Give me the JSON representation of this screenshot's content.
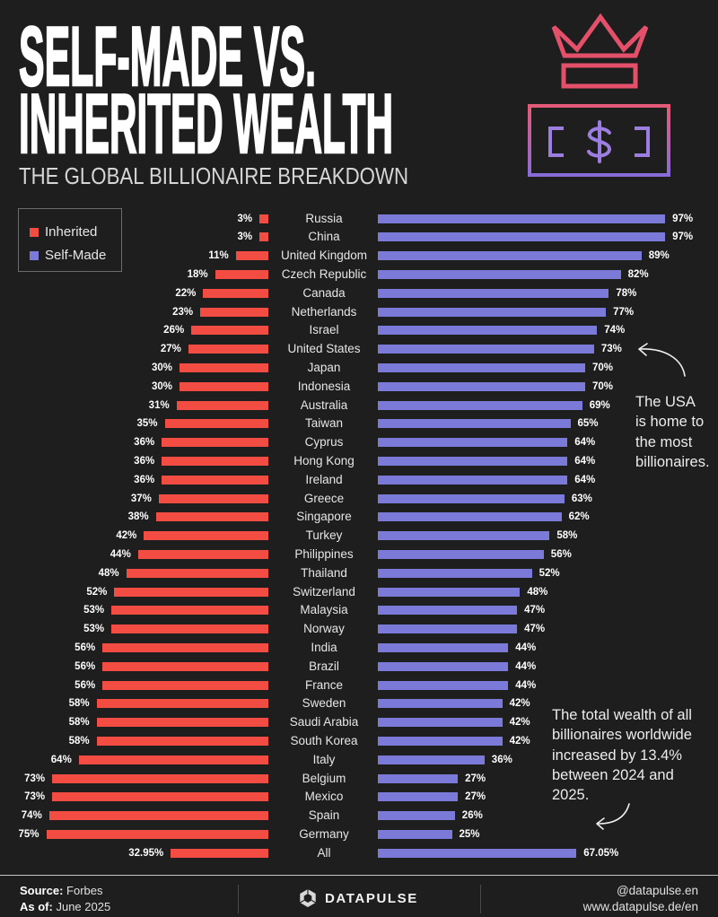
{
  "icons": {
    "crown": "crown-icon",
    "bill": "dollar-bill-icon",
    "arrow": "curved-arrow-icon",
    "logo": "datapulse-logo-icon"
  },
  "colors": {
    "background": "#1e1e1e",
    "crown": "#e4506a",
    "bill_top": "#e45a78",
    "bill_bottom": "#8a6cd6",
    "bill_symbol": "#9c7de0"
  },
  "chart_data": {
    "type": "bar",
    "orientation": "horizontal",
    "title_lines": [
      "SELF-MADE VS.",
      "INHERITED WEALTH"
    ],
    "subtitle": "THE GLOBAL BILLIONAIRE BREAKDOWN",
    "unit": "%",
    "xlim": [
      0,
      100
    ],
    "grid": false,
    "legend_position": "top-left",
    "categories": [
      "Russia",
      "China",
      "United Kingdom",
      "Czech Republic",
      "Canada",
      "Netherlands",
      "Israel",
      "United States",
      "Japan",
      "Indonesia",
      "Australia",
      "Taiwan",
      "Cyprus",
      "Hong Kong",
      "Ireland",
      "Greece",
      "Singapore",
      "Turkey",
      "Philippines",
      "Thailand",
      "Switzerland",
      "Malaysia",
      "Norway",
      "India",
      "Brazil",
      "France",
      "Sweden",
      "Saudi Arabia",
      "South Korea",
      "Italy",
      "Belgium",
      "Mexico",
      "Spain",
      "Germany",
      "All"
    ],
    "series": [
      {
        "name": "Inherited",
        "color": "#f34c43",
        "values": [
          3,
          3,
          11,
          18,
          22,
          23,
          26,
          27,
          30,
          30,
          31,
          35,
          36,
          36,
          36,
          37,
          38,
          42,
          44,
          48,
          52,
          53,
          53,
          56,
          56,
          56,
          58,
          58,
          58,
          64,
          73,
          73,
          74,
          75,
          32.95
        ]
      },
      {
        "name": "Self-Made",
        "color": "#7c7ad9",
        "values": [
          97,
          97,
          89,
          82,
          78,
          77,
          74,
          73,
          70,
          70,
          69,
          65,
          64,
          64,
          64,
          63,
          62,
          58,
          56,
          52,
          48,
          47,
          47,
          44,
          44,
          44,
          42,
          42,
          42,
          36,
          27,
          27,
          26,
          25,
          67.05
        ]
      }
    ],
    "annotations": [
      {
        "lines": [
          "The USA",
          "is home to",
          "the most",
          "billionaires."
        ]
      },
      {
        "lines": [
          "The total wealth of all",
          "billionaires worldwide",
          "increased by 13.4%",
          "between 2024 and",
          "2025."
        ]
      }
    ]
  },
  "footer": {
    "source_label": "Source:",
    "source": "Forbes",
    "as_of_label": "As of:",
    "as_of": "June 2025",
    "brand": "DATAPULSE",
    "handle": "@datapulse.en",
    "website": "www.datapulse.de/en"
  }
}
